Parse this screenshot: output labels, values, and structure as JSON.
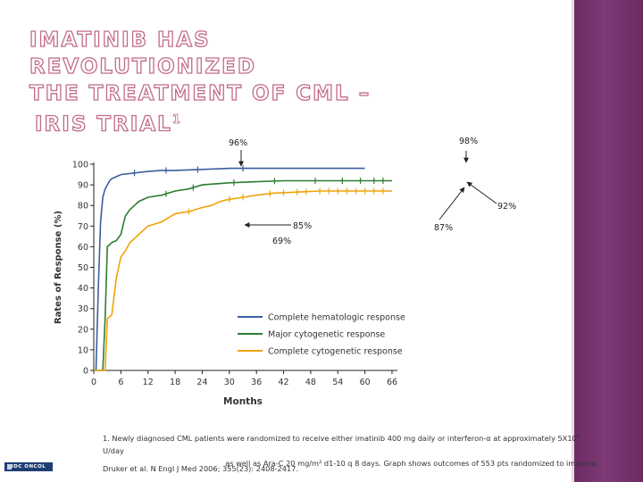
{
  "slide": {
    "title_lines": [
      "IMATINIB HAS REVOLUTIONIZED",
      "THE TREATMENT OF CML –",
      "IRIS TRIAL"
    ],
    "title_superscript": "1",
    "footnote_line1": "1. Newly diagnosed CML patients were randomized to receive either imatinib 400 mg daily or interferon-α at approximately 5X10⁶ U/day",
    "footnote_line2": "as well as Ara-C 20 mg/m² d1-10 q 8 days.  Graph shows outcomes of 553 pts randomized to imatinib.",
    "citation": "Druker et al. N Engl J Med 2006; 355(23): 2408-2417.",
    "logo_text": "IDC ONCOL",
    "accent_color": "#c26b8c",
    "band_color": "#6a2b63"
  },
  "chart_data": {
    "type": "line",
    "xlabel": "Months",
    "ylabel": "Rates of Response (%)",
    "xlim": [
      0,
      66
    ],
    "ylim": [
      0,
      100
    ],
    "xticks": [
      0,
      6,
      12,
      18,
      24,
      30,
      36,
      42,
      48,
      54,
      60,
      66
    ],
    "yticks": [
      0,
      10,
      20,
      30,
      40,
      50,
      60,
      70,
      80,
      90,
      100
    ],
    "grid": false,
    "legend_position": "bottom-right",
    "series": [
      {
        "name": "Complete hematologic response",
        "color": "#3b5f9e",
        "points": [
          [
            0,
            0
          ],
          [
            0.5,
            0
          ],
          [
            1,
            40
          ],
          [
            1.5,
            72
          ],
          [
            2,
            84
          ],
          [
            2.5,
            88
          ],
          [
            3,
            90
          ],
          [
            3.5,
            92
          ],
          [
            4,
            93
          ],
          [
            5,
            94
          ],
          [
            6,
            95
          ],
          [
            8,
            95.5
          ],
          [
            10,
            96
          ],
          [
            12,
            96.5
          ],
          [
            15,
            97
          ],
          [
            18,
            97
          ],
          [
            24,
            97.5
          ],
          [
            30,
            98
          ],
          [
            36,
            98
          ],
          [
            42,
            98
          ],
          [
            48,
            98
          ],
          [
            54,
            98
          ],
          [
            60,
            98
          ]
        ],
        "censor_marks": [
          9,
          16,
          23,
          33
        ]
      },
      {
        "name": "Major cytogenetic response",
        "color": "#2e7d32",
        "points": [
          [
            0,
            0
          ],
          [
            2,
            0
          ],
          [
            2.5,
            25
          ],
          [
            3,
            60
          ],
          [
            4,
            62
          ],
          [
            5,
            63
          ],
          [
            6,
            66
          ],
          [
            7,
            75
          ],
          [
            8,
            78
          ],
          [
            9,
            80
          ],
          [
            10,
            82
          ],
          [
            12,
            84
          ],
          [
            15,
            85
          ],
          [
            18,
            87
          ],
          [
            21,
            88
          ],
          [
            24,
            90
          ],
          [
            27,
            90.5
          ],
          [
            30,
            91
          ],
          [
            36,
            91.5
          ],
          [
            42,
            92
          ],
          [
            48,
            92
          ],
          [
            54,
            92
          ],
          [
            60,
            92
          ],
          [
            66,
            92
          ]
        ],
        "censor_marks": [
          16,
          22,
          31,
          40,
          49,
          55,
          59,
          62,
          64
        ]
      },
      {
        "name": "Complete cytogenetic response",
        "color": "#f0a30a",
        "points": [
          [
            0,
            0
          ],
          [
            2.5,
            0
          ],
          [
            3,
            25
          ],
          [
            4,
            27
          ],
          [
            5,
            45
          ],
          [
            6,
            55
          ],
          [
            7,
            58
          ],
          [
            8,
            62
          ],
          [
            9,
            64
          ],
          [
            10,
            66
          ],
          [
            12,
            70
          ],
          [
            15,
            72
          ],
          [
            18,
            76
          ],
          [
            21,
            77
          ],
          [
            24,
            79
          ],
          [
            26,
            80
          ],
          [
            28,
            82
          ],
          [
            30,
            83
          ],
          [
            33,
            84
          ],
          [
            36,
            85
          ],
          [
            40,
            86
          ],
          [
            45,
            86.5
          ],
          [
            50,
            87
          ],
          [
            55,
            87
          ],
          [
            60,
            87
          ],
          [
            66,
            87
          ]
        ],
        "censor_marks": [
          21,
          30,
          33,
          39,
          42,
          45,
          47,
          50,
          52,
          54,
          56,
          58,
          60,
          62,
          64
        ]
      }
    ],
    "annotations": [
      {
        "text": "96%"
      },
      {
        "text": "98%"
      },
      {
        "text": "92%"
      },
      {
        "text": "85%"
      },
      {
        "text": "87%"
      },
      {
        "text": "69%"
      }
    ]
  }
}
